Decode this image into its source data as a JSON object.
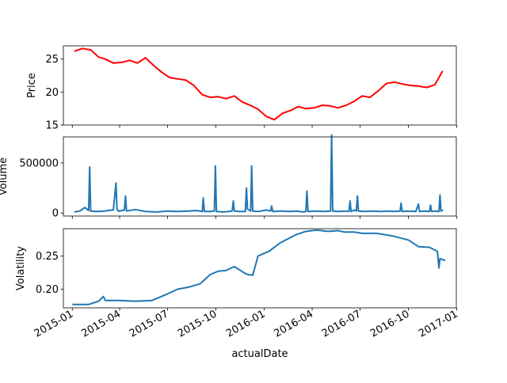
{
  "chart_data": [
    {
      "type": "line",
      "ylabel": "Price",
      "xlabel": "",
      "color": "#ff0000",
      "ylim": [
        15,
        27
      ],
      "yticks": [
        15,
        20,
        25
      ],
      "xlim": [
        "2014-12-15",
        "2016-12-31"
      ],
      "xticks": [
        "2015-01",
        "2015-04",
        "2015-07",
        "2015-10",
        "2016-01",
        "2016-04",
        "2016-07",
        "2016-10",
        "2017-01"
      ],
      "x": [
        "2015-01-05",
        "2015-01-20",
        "2015-02-05",
        "2015-02-20",
        "2015-03-05",
        "2015-03-20",
        "2015-04-05",
        "2015-04-20",
        "2015-05-05",
        "2015-05-20",
        "2015-06-05",
        "2015-06-20",
        "2015-07-05",
        "2015-07-20",
        "2015-08-05",
        "2015-08-20",
        "2015-09-05",
        "2015-09-20",
        "2015-10-05",
        "2015-10-20",
        "2015-11-05",
        "2015-11-20",
        "2015-12-05",
        "2015-12-20",
        "2016-01-05",
        "2016-01-20",
        "2016-02-05",
        "2016-02-20",
        "2016-03-05",
        "2016-03-20",
        "2016-04-05",
        "2016-04-20",
        "2016-05-05",
        "2016-05-20",
        "2016-06-05",
        "2016-06-20",
        "2016-07-05",
        "2016-07-20",
        "2016-08-05",
        "2016-08-20",
        "2016-09-05",
        "2016-09-20",
        "2016-10-05",
        "2016-10-20",
        "2016-11-05",
        "2016-11-20",
        "2016-12-05"
      ],
      "values": [
        26.2,
        26.6,
        26.4,
        25.3,
        25.0,
        24.4,
        24.5,
        24.8,
        24.4,
        25.2,
        24.0,
        23.0,
        22.2,
        22.0,
        21.8,
        21.0,
        19.6,
        19.2,
        19.3,
        19.0,
        19.4,
        18.5,
        18.0,
        17.4,
        16.3,
        15.8,
        16.8,
        17.2,
        17.8,
        17.5,
        17.6,
        18.0,
        17.9,
        17.6,
        18.0,
        18.6,
        19.4,
        19.2,
        20.2,
        21.3,
        21.5,
        21.2,
        21.0,
        20.9,
        20.7,
        21.1,
        23.2
      ]
    },
    {
      "type": "line",
      "ylabel": "Volume",
      "xlabel": "",
      "color": "#1f77b4",
      "ylim": [
        -30000,
        760000
      ],
      "yticks": [
        0,
        500000
      ],
      "xlim": [
        "2014-12-15",
        "2016-12-31"
      ],
      "xticks": [
        "2015-01",
        "2015-04",
        "2015-07",
        "2015-10",
        "2016-01",
        "2016-04",
        "2016-07",
        "2016-10",
        "2017-01"
      ],
      "x": [
        "2015-01-05",
        "2015-01-15",
        "2015-01-25",
        "2015-02-01",
        "2015-02-03",
        "2015-02-05",
        "2015-02-15",
        "2015-03-01",
        "2015-03-10",
        "2015-03-20",
        "2015-03-25",
        "2015-03-27",
        "2015-03-30",
        "2015-04-10",
        "2015-04-12",
        "2015-04-14",
        "2015-05-01",
        "2015-05-20",
        "2015-06-10",
        "2015-07-01",
        "2015-07-20",
        "2015-08-10",
        "2015-08-25",
        "2015-09-05",
        "2015-09-07",
        "2015-09-09",
        "2015-09-20",
        "2015-09-28",
        "2015-09-30",
        "2015-10-02",
        "2015-10-15",
        "2015-10-25",
        "2015-11-01",
        "2015-11-03",
        "2015-11-05",
        "2015-11-15",
        "2015-11-26",
        "2015-11-28",
        "2015-11-30",
        "2015-12-06",
        "2015-12-08",
        "2015-12-10",
        "2015-12-20",
        "2016-01-05",
        "2016-01-13",
        "2016-01-15",
        "2016-01-17",
        "2016-02-01",
        "2016-02-20",
        "2016-03-01",
        "2016-03-15",
        "2016-03-20",
        "2016-03-22",
        "2016-03-24",
        "2016-04-10",
        "2016-04-25",
        "2016-05-06",
        "2016-05-08",
        "2016-05-10",
        "2016-05-20",
        "2016-06-05",
        "2016-06-10",
        "2016-06-12",
        "2016-06-14",
        "2016-06-20",
        "2016-06-24",
        "2016-06-26",
        "2016-06-28",
        "2016-07-10",
        "2016-07-25",
        "2016-08-10",
        "2016-08-25",
        "2016-09-01",
        "2016-09-15",
        "2016-09-17",
        "2016-09-19",
        "2016-10-01",
        "2016-10-15",
        "2016-10-20",
        "2016-10-22",
        "2016-11-01",
        "2016-11-10",
        "2016-11-12",
        "2016-11-14",
        "2016-11-20",
        "2016-11-28",
        "2016-11-30",
        "2016-12-02",
        "2016-12-06"
      ],
      "values": [
        10000,
        20000,
        55000,
        25000,
        460000,
        20000,
        15000,
        18000,
        25000,
        30000,
        300000,
        40000,
        18000,
        30000,
        170000,
        20000,
        35000,
        15000,
        10000,
        20000,
        15000,
        20000,
        25000,
        15000,
        150000,
        15000,
        15000,
        20000,
        470000,
        15000,
        10000,
        15000,
        20000,
        120000,
        20000,
        15000,
        15000,
        250000,
        40000,
        20000,
        470000,
        20000,
        15000,
        30000,
        20000,
        70000,
        15000,
        20000,
        15000,
        20000,
        10000,
        15000,
        220000,
        15000,
        20000,
        15000,
        20000,
        780000,
        20000,
        15000,
        20000,
        15000,
        120000,
        15000,
        30000,
        20000,
        170000,
        20000,
        15000,
        20000,
        15000,
        20000,
        15000,
        20000,
        100000,
        15000,
        20000,
        15000,
        90000,
        15000,
        20000,
        15000,
        80000,
        15000,
        20000,
        15000,
        180000,
        20000,
        30000
      ]
    },
    {
      "type": "line",
      "ylabel": "Volatility",
      "xlabel": "actualDate",
      "color": "#1f77b4",
      "ylim": [
        0.172,
        0.291
      ],
      "yticks": [
        0.2,
        0.25
      ],
      "xlim": [
        "2014-12-15",
        "2016-12-31"
      ],
      "xticks": [
        "2015-01",
        "2015-04",
        "2015-07",
        "2015-10",
        "2016-01",
        "2016-04",
        "2016-07",
        "2016-10",
        "2017-01"
      ],
      "x": [
        "2015-01-01",
        "2015-02-01",
        "2015-02-20",
        "2015-03-01",
        "2015-03-05",
        "2015-04-01",
        "2015-05-01",
        "2015-06-01",
        "2015-07-01",
        "2015-07-20",
        "2015-08-10",
        "2015-09-01",
        "2015-09-20",
        "2015-10-05",
        "2015-10-20",
        "2015-11-05",
        "2015-11-25",
        "2015-12-01",
        "2015-12-10",
        "2015-12-20",
        "2016-01-10",
        "2016-02-01",
        "2016-03-01",
        "2016-03-20",
        "2016-04-10",
        "2016-05-01",
        "2016-05-20",
        "2016-06-01",
        "2016-06-20",
        "2016-07-05",
        "2016-08-01",
        "2016-09-01",
        "2016-10-01",
        "2016-10-20",
        "2016-11-10",
        "2016-11-25",
        "2016-11-28",
        "2016-11-30",
        "2016-12-10"
      ],
      "values": [
        0.177,
        0.177,
        0.182,
        0.189,
        0.183,
        0.183,
        0.182,
        0.183,
        0.193,
        0.2,
        0.203,
        0.208,
        0.222,
        0.227,
        0.228,
        0.234,
        0.224,
        0.222,
        0.221,
        0.25,
        0.257,
        0.27,
        0.282,
        0.287,
        0.289,
        0.287,
        0.288,
        0.286,
        0.286,
        0.284,
        0.284,
        0.28,
        0.274,
        0.264,
        0.263,
        0.257,
        0.232,
        0.246,
        0.243
      ]
    }
  ]
}
